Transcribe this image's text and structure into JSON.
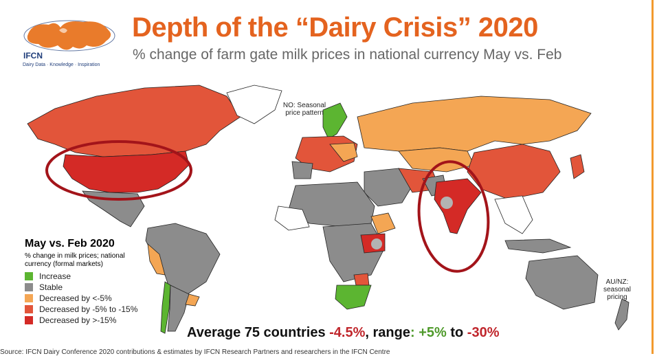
{
  "logo": {
    "brand": "IFCN",
    "tagline": "Dairy Data · Knowledge · Inspiration"
  },
  "title": "Depth of the “Dairy Crisis” 2020",
  "subtitle": "% change of farm gate milk prices in national currency May vs. Feb",
  "notes": {
    "norway": "NO: Seasonal price pattern",
    "oceania": "AU/NZ: seasonal pricing"
  },
  "legend": {
    "title": "May vs. Feb 2020",
    "description": "% change in milk prices; national currency (formal markets)",
    "items": [
      {
        "label": "Increase",
        "color": "#5cb531"
      },
      {
        "label": "Stable",
        "color": "#8c8c8c"
      },
      {
        "label": "Decreased by <-5%",
        "color": "#f4a654"
      },
      {
        "label": "Decreased by -5% to -15%",
        "color": "#e2553a"
      },
      {
        "label": "Decreased by >-15%",
        "color": "#d42a26"
      }
    ]
  },
  "summary": {
    "prefix": "Average 75 countries ",
    "average": "-4.5%",
    "mid": ", range",
    "colon": ": ",
    "high": "+5%",
    "to": " to ",
    "low": "-30%"
  },
  "source": "Source: IFCN Dairy Conference 2020 contributions & estimates by IFCN Research Partners and researchers in the IFCN Centre"
}
